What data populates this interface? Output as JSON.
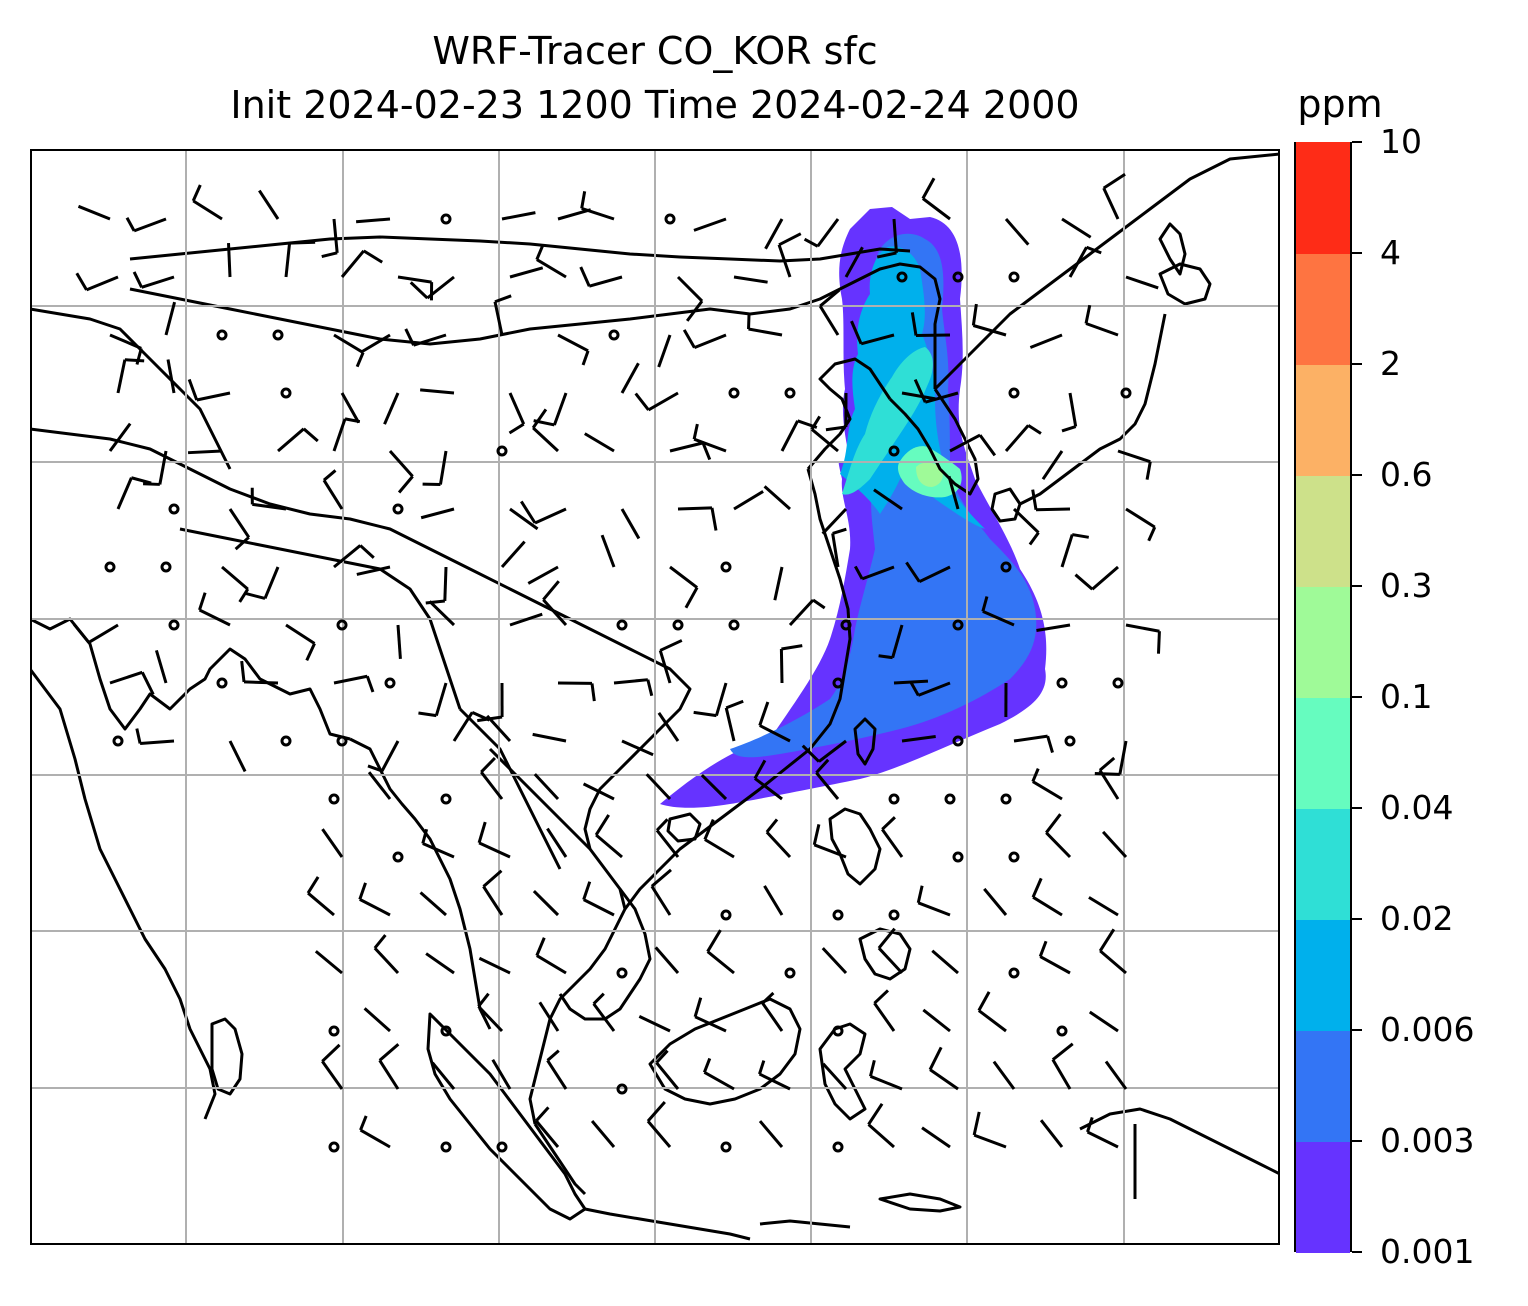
{
  "title": {
    "line1": "WRF-Tracer CO_KOR sfc",
    "line2": "Init 2024-02-23 1200 Time 2024-02-24 2000"
  },
  "colorbar": {
    "unit": "ppm",
    "levels": [
      "0.001",
      "0.003",
      "0.006",
      "0.02",
      "0.04",
      "0.1",
      "0.3",
      "0.6",
      "2",
      "4",
      "10"
    ],
    "colors": [
      "#6633ff",
      "#3375f5",
      "#00b0ec",
      "#2fdfd6",
      "#66fcbf",
      "#9ffa98",
      "#cde18a",
      "#fcb165",
      "#fe7441",
      "#fe2c17"
    ]
  },
  "map": {
    "land_outline_color": "#000000",
    "gridline_color": "#b0b0b0",
    "wind_barb_color": "#000000",
    "tracer_plume": "CO tracer plume over Korea, Yellow Sea, East China Sea and western North Pacific"
  }
}
